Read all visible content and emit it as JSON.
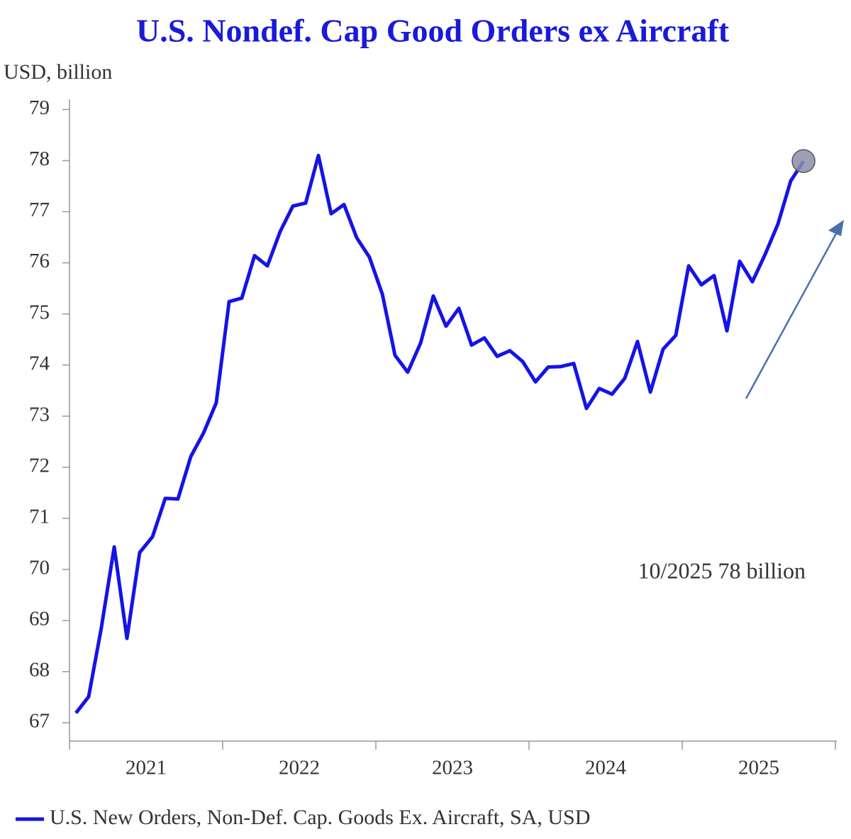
{
  "chart_data": {
    "type": "line",
    "title": "U.S. Nondef. Cap Good Orders ex Aircraft",
    "y_label": "USD, billion",
    "annotation": "10/2025 78 billion",
    "categories": [
      "2021",
      "2022",
      "2023",
      "2024",
      "2025"
    ],
    "x": [
      2021.042,
      2021.125,
      2021.208,
      2021.292,
      2021.375,
      2021.458,
      2021.542,
      2021.625,
      2021.708,
      2021.792,
      2021.875,
      2021.958,
      2022.042,
      2022.125,
      2022.208,
      2022.292,
      2022.375,
      2022.458,
      2022.542,
      2022.625,
      2022.708,
      2022.792,
      2022.875,
      2022.958,
      2023.042,
      2023.125,
      2023.208,
      2023.292,
      2023.375,
      2023.458,
      2023.542,
      2023.625,
      2023.708,
      2023.792,
      2023.875,
      2023.958,
      2024.042,
      2024.125,
      2024.208,
      2024.292,
      2024.375,
      2024.458,
      2024.542,
      2024.625,
      2024.708,
      2024.792,
      2024.875,
      2024.958,
      2025.042,
      2025.125,
      2025.208,
      2025.292,
      2025.375,
      2025.458,
      2025.542,
      2025.625,
      2025.708,
      2025.792
    ],
    "series": [
      {
        "name": "U.S. New Orders, Non-Def. Cap. Goods Ex. Aircraft, SA, USD",
        "color": "#1414e6",
        "values": [
          67.19,
          67.51,
          68.86,
          70.44,
          68.65,
          70.33,
          70.64,
          71.39,
          71.38,
          72.21,
          72.67,
          73.26,
          75.24,
          75.31,
          76.14,
          75.94,
          76.61,
          77.11,
          77.17,
          78.1,
          76.96,
          77.14,
          76.49,
          76.11,
          75.39,
          74.19,
          73.86,
          74.43,
          75.35,
          74.76,
          75.11,
          74.39,
          74.53,
          74.17,
          74.28,
          74.07,
          73.67,
          73.96,
          73.97,
          74.03,
          73.15,
          73.54,
          73.43,
          73.74,
          74.46,
          73.47,
          74.31,
          74.58,
          75.94,
          75.57,
          75.75,
          74.67,
          76.03,
          75.63,
          76.17,
          76.76,
          77.6,
          77.99
        ]
      }
    ],
    "highlight_color": "#8a8fa8",
    "xlim": [
      2021,
      2026
    ],
    "xticks": [
      2021,
      2022,
      2023,
      2024,
      2025,
      2026
    ],
    "ylim": [
      66.64,
      79.2
    ],
    "yticks": [
      67,
      68,
      69,
      70,
      71,
      72,
      73,
      74,
      75,
      76,
      77,
      78,
      79
    ],
    "grid": false
  }
}
